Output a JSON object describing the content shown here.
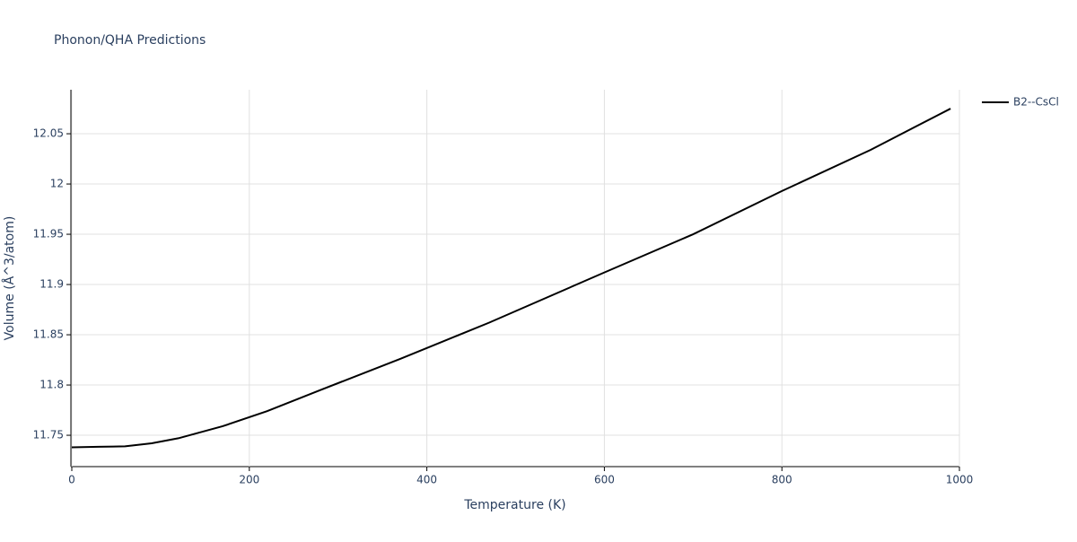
{
  "chart_data": {
    "type": "line",
    "title": "Phonon/QHA Predictions",
    "x_label": "Temperature (K)",
    "y_label": "Volume (Å^3/atom)",
    "x": [
      0,
      30,
      60,
      90,
      120,
      170,
      220,
      280,
      370,
      470,
      600,
      700,
      800,
      900,
      990
    ],
    "series": [
      {
        "name": "B2--CsCl",
        "color": "#000000",
        "values": [
          11.738,
          11.7385,
          11.739,
          11.742,
          11.747,
          11.759,
          11.774,
          11.795,
          11.826,
          11.862,
          11.912,
          11.95,
          11.993,
          12.034,
          12.075
        ]
      }
    ],
    "xlim": [
      0,
      1000
    ],
    "xticks": [
      0,
      200,
      400,
      600,
      800,
      1000
    ],
    "ylim": [
      11.7188,
      12.0938
    ],
    "yticks": [
      11.75,
      11.8,
      11.85,
      11.9,
      11.95,
      12,
      12.05
    ],
    "grid": true,
    "legend": "top-right"
  }
}
